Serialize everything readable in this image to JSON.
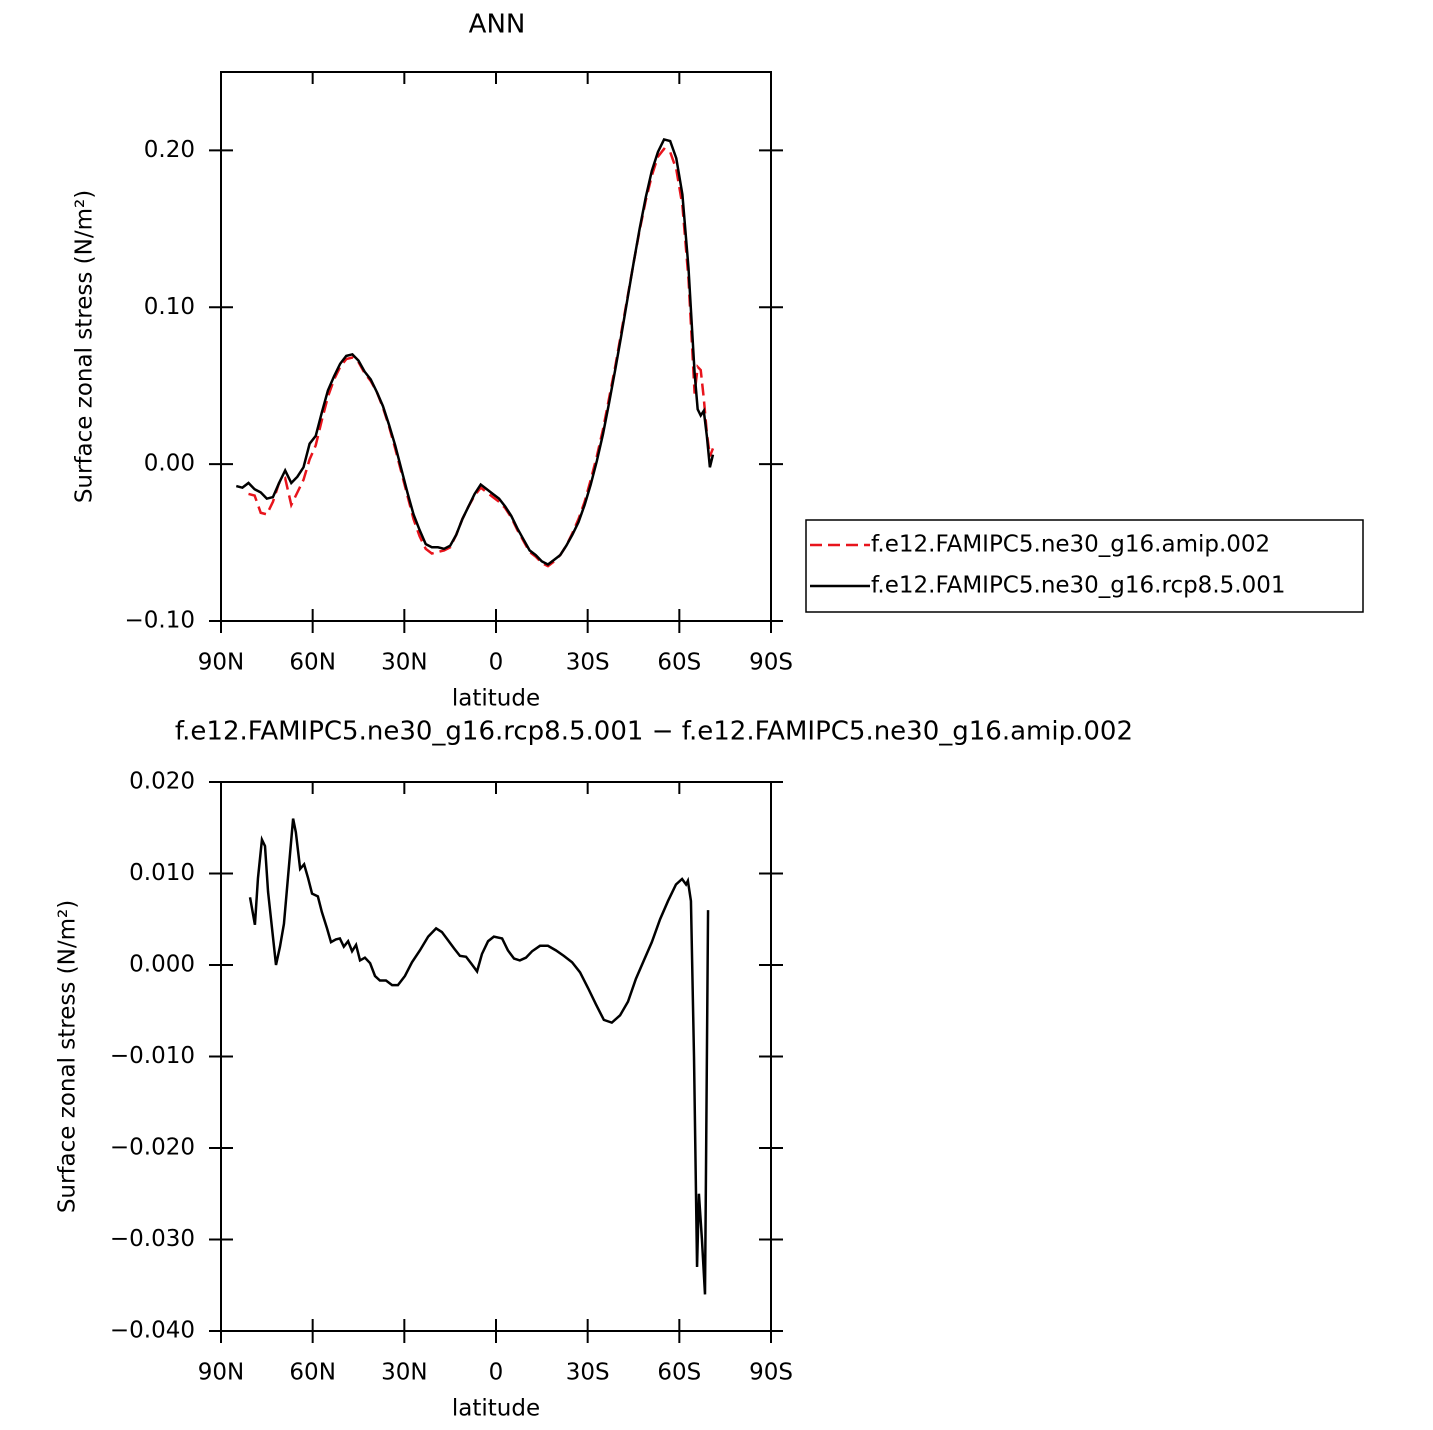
{
  "chart_data": [
    {
      "type": "line",
      "title": "ANN",
      "xlabel": "latitude",
      "ylabel": "Surface zonal stress (N/m²)",
      "xlim": [
        90,
        -90
      ],
      "ylim": [
        -0.1,
        0.25
      ],
      "xticks": [
        {
          "value": 90,
          "label": "90N"
        },
        {
          "value": 60,
          "label": "60N"
        },
        {
          "value": 30,
          "label": "30N"
        },
        0,
        {
          "value": -30,
          "label": "30S"
        },
        {
          "value": -60,
          "label": "60S"
        },
        {
          "value": -90,
          "label": "90S"
        }
      ],
      "yticks": [
        {
          "value": -0.1,
          "label": "−0.10"
        },
        {
          "value": 0,
          "label": "0.00"
        },
        {
          "value": 0.1,
          "label": "0.10"
        },
        {
          "value": 0.2,
          "label": "0.20"
        }
      ],
      "legend": "right",
      "x": [
        85,
        83,
        81,
        79,
        77,
        75,
        73,
        71,
        69,
        67,
        65,
        63,
        61,
        59,
        57,
        55,
        53,
        51,
        49,
        47,
        45,
        43,
        41,
        39,
        37,
        35,
        33,
        31,
        29,
        27,
        25,
        23,
        21,
        19,
        17,
        15,
        13,
        11,
        9,
        7,
        5,
        3,
        1,
        -1,
        -3,
        -5,
        -7,
        -9,
        -11,
        -13,
        -15,
        -17,
        -19,
        -21,
        -23,
        -25,
        -27,
        -29,
        -31,
        -33,
        -35,
        -37,
        -39,
        -41,
        -43,
        -45,
        -47,
        -49,
        -51,
        -53,
        -55,
        -57,
        -59,
        -61,
        -63,
        -65,
        -66,
        -67,
        -68,
        -69,
        -70,
        -71
      ],
      "series": [
        {
          "name": "f.e12.FAMIPC5.ne30_g16.amip.002",
          "color": "#e8141c",
          "linestyle": "dashed",
          "values": [
            null,
            null,
            -0.019,
            -0.02,
            -0.031,
            -0.032,
            -0.024,
            -0.012,
            -0.009,
            -0.026,
            -0.018,
            -0.01,
            0.003,
            0.012,
            0.028,
            0.043,
            0.054,
            0.062,
            0.067,
            0.068,
            0.065,
            0.058,
            0.053,
            0.046,
            0.036,
            0.024,
            0.01,
            -0.005,
            -0.02,
            -0.035,
            -0.046,
            -0.054,
            -0.057,
            -0.056,
            -0.055,
            -0.053,
            -0.045,
            -0.035,
            -0.027,
            -0.02,
            -0.015,
            -0.018,
            -0.021,
            -0.024,
            -0.028,
            -0.034,
            -0.042,
            -0.049,
            -0.056,
            -0.059,
            -0.063,
            -0.065,
            -0.062,
            -0.058,
            -0.052,
            -0.044,
            -0.035,
            -0.024,
            -0.01,
            0.005,
            0.022,
            0.042,
            0.062,
            0.084,
            0.106,
            0.128,
            0.149,
            0.168,
            0.184,
            0.196,
            0.201,
            0.199,
            0.188,
            0.165,
            0.118,
            0.045,
            0.062,
            0.06,
            0.042,
            0.02,
            0.005,
            0.01
          ]
        },
        {
          "name": "f.e12.FAMIPC5.ne30_g16.rcp8.5.001",
          "color": "#000000",
          "linestyle": "solid",
          "values": [
            -0.014,
            -0.015,
            -0.012,
            -0.016,
            -0.018,
            -0.022,
            -0.021,
            -0.012,
            -0.004,
            -0.012,
            -0.008,
            -0.002,
            0.013,
            0.018,
            0.033,
            0.047,
            0.056,
            0.064,
            0.069,
            0.07,
            0.066,
            0.059,
            0.054,
            0.046,
            0.037,
            0.025,
            0.012,
            -0.003,
            -0.018,
            -0.032,
            -0.042,
            -0.051,
            -0.053,
            -0.053,
            -0.054,
            -0.052,
            -0.045,
            -0.035,
            -0.027,
            -0.019,
            -0.013,
            -0.016,
            -0.019,
            -0.022,
            -0.027,
            -0.033,
            -0.041,
            -0.048,
            -0.055,
            -0.058,
            -0.062,
            -0.064,
            -0.061,
            -0.058,
            -0.052,
            -0.045,
            -0.037,
            -0.026,
            -0.013,
            0.002,
            0.019,
            0.039,
            0.06,
            0.082,
            0.105,
            0.128,
            0.15,
            0.17,
            0.187,
            0.199,
            0.207,
            0.206,
            0.195,
            0.172,
            0.125,
            0.058,
            0.035,
            0.031,
            0.034,
            0.018,
            -0.002,
            0.006
          ]
        }
      ]
    },
    {
      "type": "line",
      "title": "f.e12.FAMIPC5.ne30_g16.rcp8.5.001 − f.e12.FAMIPC5.ne30_g16.amip.002",
      "xlabel": "latitude",
      "ylabel": "Surface zonal stress (N/m²)",
      "xlim": [
        90,
        -90
      ],
      "ylim": [
        -0.04,
        0.02
      ],
      "xticks": [
        {
          "value": 90,
          "label": "90N"
        },
        {
          "value": 60,
          "label": "60N"
        },
        {
          "value": 30,
          "label": "30N"
        },
        0,
        {
          "value": -30,
          "label": "30S"
        },
        {
          "value": -60,
          "label": "60S"
        },
        {
          "value": -90,
          "label": "90S"
        }
      ],
      "yticks": [
        {
          "value": -0.04,
          "label": "−0.040"
        },
        {
          "value": -0.03,
          "label": "−0.030"
        },
        {
          "value": -0.02,
          "label": "−0.020"
        },
        {
          "value": -0.01,
          "label": "−0.010"
        },
        {
          "value": 0,
          "label": "0.000"
        },
        {
          "value": 0.01,
          "label": "0.010"
        },
        {
          "value": 0.02,
          "label": "0.020"
        }
      ],
      "x": [
        80.5,
        78.9,
        77.9,
        76.6,
        75.6,
        74.6,
        73.3,
        72,
        70.7,
        69.4,
        68.1,
        66.4,
        65.5,
        64.1,
        62.8,
        61.5,
        60.2,
        58.3,
        57,
        55.3,
        54,
        52.4,
        51.1,
        49.8,
        48.4,
        47.1,
        45.8,
        44.5,
        42.9,
        41.2,
        39.6,
        38,
        36,
        34,
        32.1,
        29.8,
        27.5,
        24.9,
        22.2,
        19.6,
        17.7,
        15.7,
        13.7,
        11.8,
        9.8,
        8.2,
        6.2,
        4.6,
        2.6,
        0.7,
        -2,
        -3.9,
        -5.9,
        -7.8,
        -9.8,
        -11.8,
        -14.4,
        -17,
        -19.6,
        -22.2,
        -24.9,
        -27.5,
        -30.1,
        -32.7,
        -35.3,
        -37.9,
        -40.6,
        -43.2,
        -45.8,
        -48.4,
        -51,
        -53.7,
        -56.3,
        -58.9,
        -60.9,
        -62.2,
        -62.8,
        -63.8,
        -64.8,
        -65.8,
        -66.4,
        -67.4,
        -68.4,
        -69.4
      ],
      "series": [
        {
          "color": "#000000",
          "linestyle": "solid",
          "values": [
            0.0074,
            0.0044,
            0.0095,
            0.0137,
            0.013,
            0.008,
            0.004,
            0.0,
            0.002,
            0.0045,
            0.0095,
            0.016,
            0.0145,
            0.0105,
            0.011,
            0.0095,
            0.0078,
            0.0075,
            0.0058,
            0.004,
            0.0025,
            0.0028,
            0.0029,
            0.002,
            0.0026,
            0.0015,
            0.0022,
            0.0005,
            0.0008,
            0.0002,
            -0.0012,
            -0.0017,
            -0.0017,
            -0.0022,
            -0.0022,
            -0.0012,
            0.0003,
            0.0016,
            0.0031,
            0.004,
            0.0036,
            0.0027,
            0.0018,
            0.001,
            0.0009,
            0.0002,
            -0.0007,
            0.0012,
            0.0026,
            0.0031,
            0.0029,
            0.0016,
            0.0007,
            0.0005,
            0.0008,
            0.0015,
            0.0021,
            0.0021,
            0.0016,
            0.001,
            0.0003,
            -0.0008,
            -0.0025,
            -0.0043,
            -0.006,
            -0.0063,
            -0.0055,
            -0.004,
            -0.0015,
            0.0005,
            0.0025,
            0.005,
            0.007,
            0.0088,
            0.0094,
            0.0088,
            0.0092,
            0.007,
            -0.01,
            -0.033,
            -0.025,
            -0.03,
            -0.036,
            0.006
          ]
        }
      ]
    }
  ]
}
